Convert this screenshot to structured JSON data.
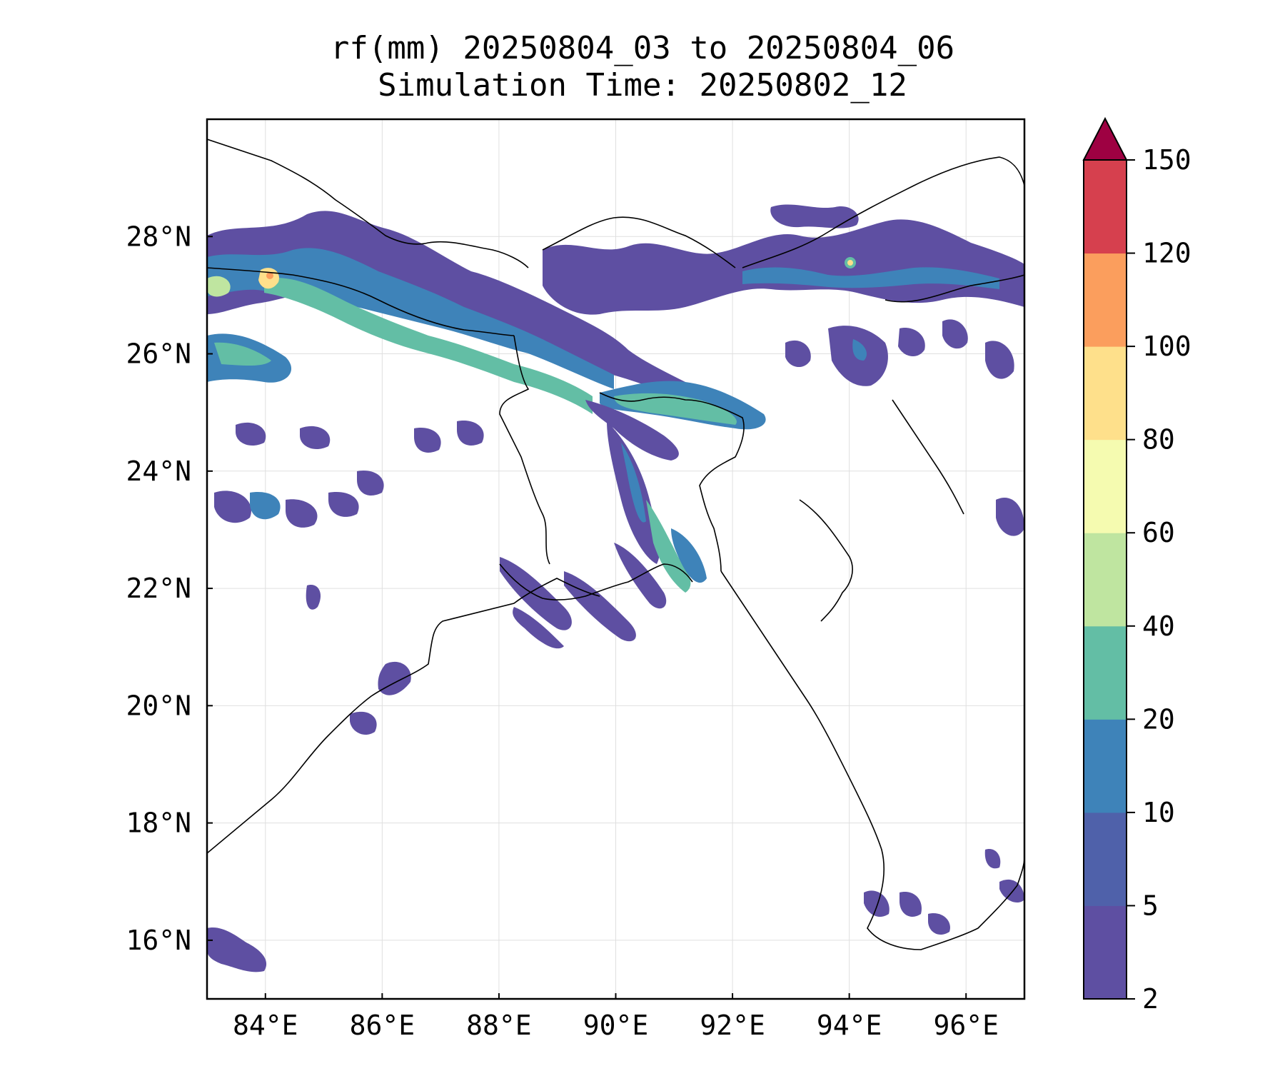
{
  "title": {
    "line1": "rf(mm) 20250804_03 to 20250804_06",
    "line2": "Simulation Time: 20250802_12"
  },
  "map": {
    "lon_range": [
      83,
      97
    ],
    "lat_range": [
      15,
      30
    ],
    "lon_ticks": [
      {
        "value": 84,
        "label": "84°E"
      },
      {
        "value": 86,
        "label": "86°E"
      },
      {
        "value": 88,
        "label": "88°E"
      },
      {
        "value": 90,
        "label": "90°E"
      },
      {
        "value": 92,
        "label": "92°E"
      },
      {
        "value": 94,
        "label": "94°E"
      },
      {
        "value": 96,
        "label": "96°E"
      }
    ],
    "lat_ticks": [
      {
        "value": 16,
        "label": "16°N"
      },
      {
        "value": 18,
        "label": "18°N"
      },
      {
        "value": 20,
        "label": "20°N"
      },
      {
        "value": 22,
        "label": "22°N"
      },
      {
        "value": 24,
        "label": "24°N"
      },
      {
        "value": 26,
        "label": "26°N"
      },
      {
        "value": 28,
        "label": "28°N"
      }
    ],
    "gridlines": true
  },
  "colorbar": {
    "extend": "max",
    "extend_color": "#9e0142",
    "levels": [
      {
        "label": "2",
        "value": 2,
        "color": "#5e4fa2"
      },
      {
        "label": "5",
        "value": 5,
        "color": "#4f61aa"
      },
      {
        "label": "10",
        "value": 10,
        "color": "#3e83b9"
      },
      {
        "label": "20",
        "value": 20,
        "color": "#63bea5"
      },
      {
        "label": "40",
        "value": 40,
        "color": "#bfe5a0"
      },
      {
        "label": "60",
        "value": 60,
        "color": "#f5fbb0"
      },
      {
        "label": "80",
        "value": 80,
        "color": "#fee08b"
      },
      {
        "label": "100",
        "value": 100,
        "color": "#fb9e5d"
      },
      {
        "label": "120",
        "value": 120,
        "color": "#d6404e"
      },
      {
        "label": "150",
        "value": 150,
        "color": ""
      }
    ]
  }
}
